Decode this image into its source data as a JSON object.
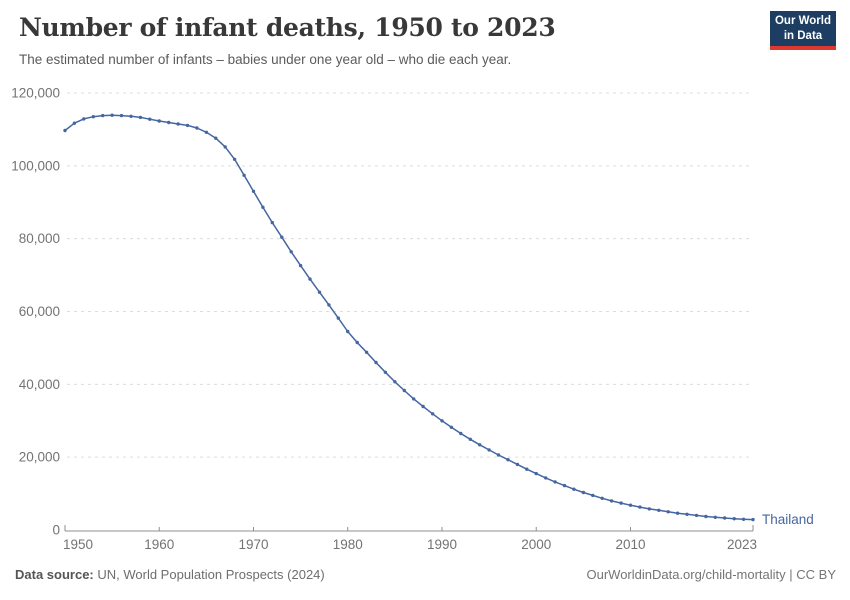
{
  "header": {
    "title": "Number of infant deaths, 1950 to 2023",
    "subtitle": "The estimated number of infants – babies under one year old – who die each year."
  },
  "logo": {
    "line1": "Our World",
    "line2": "in Data",
    "bg_color": "#1d3d63",
    "accent_color": "#e0372e"
  },
  "chart_data": {
    "type": "line",
    "title": "Number of infant deaths, 1950 to 2023",
    "xlabel": "",
    "ylabel": "",
    "ylim": [
      0,
      120000
    ],
    "yticks": [
      0,
      20000,
      40000,
      60000,
      80000,
      100000,
      120000
    ],
    "xticks": [
      1950,
      1960,
      1970,
      1980,
      1990,
      2000,
      2010,
      2023
    ],
    "grid": "dashed",
    "legend_position": "end-of-line",
    "series": [
      {
        "name": "Thailand",
        "color": "#4666a0",
        "x": [
          1950,
          1951,
          1952,
          1953,
          1954,
          1955,
          1956,
          1957,
          1958,
          1959,
          1960,
          1961,
          1962,
          1963,
          1964,
          1965,
          1966,
          1967,
          1968,
          1969,
          1970,
          1971,
          1972,
          1973,
          1974,
          1975,
          1976,
          1977,
          1978,
          1979,
          1980,
          1981,
          1982,
          1983,
          1984,
          1985,
          1986,
          1987,
          1988,
          1989,
          1990,
          1991,
          1992,
          1993,
          1994,
          1995,
          1996,
          1997,
          1998,
          1999,
          2000,
          2001,
          2002,
          2003,
          2004,
          2005,
          2006,
          2007,
          2008,
          2009,
          2010,
          2011,
          2012,
          2013,
          2014,
          2015,
          2016,
          2017,
          2018,
          2019,
          2020,
          2021,
          2022,
          2023
        ],
        "values": [
          109700,
          111700,
          112900,
          113500,
          113800,
          113900,
          113800,
          113600,
          113300,
          112800,
          112300,
          111900,
          111500,
          111100,
          110400,
          109200,
          107600,
          105200,
          101800,
          97400,
          93000,
          88600,
          84400,
          80400,
          76400,
          72600,
          68900,
          65300,
          61800,
          58200,
          54500,
          51500,
          48800,
          46000,
          43300,
          40700,
          38300,
          36000,
          33900,
          31900,
          30000,
          28200,
          26500,
          24900,
          23400,
          22000,
          20600,
          19300,
          18000,
          16700,
          15500,
          14300,
          13200,
          12200,
          11200,
          10300,
          9500,
          8700,
          8000,
          7400,
          6800,
          6300,
          5800,
          5400,
          5000,
          4600,
          4300,
          4000,
          3700,
          3500,
          3300,
          3100,
          2950,
          2850
        ]
      }
    ],
    "colors": {
      "line": "#4666a0",
      "grid": "#dcdcdc",
      "axis": "#8f8f8f",
      "tick_label": "#737373"
    }
  },
  "footer": {
    "datasource_label": "Data source:",
    "datasource_text": " UN, World Population Prospects (2024)",
    "right_link": "OurWorldinData.org/child-mortality",
    "right_license": " | CC BY"
  }
}
